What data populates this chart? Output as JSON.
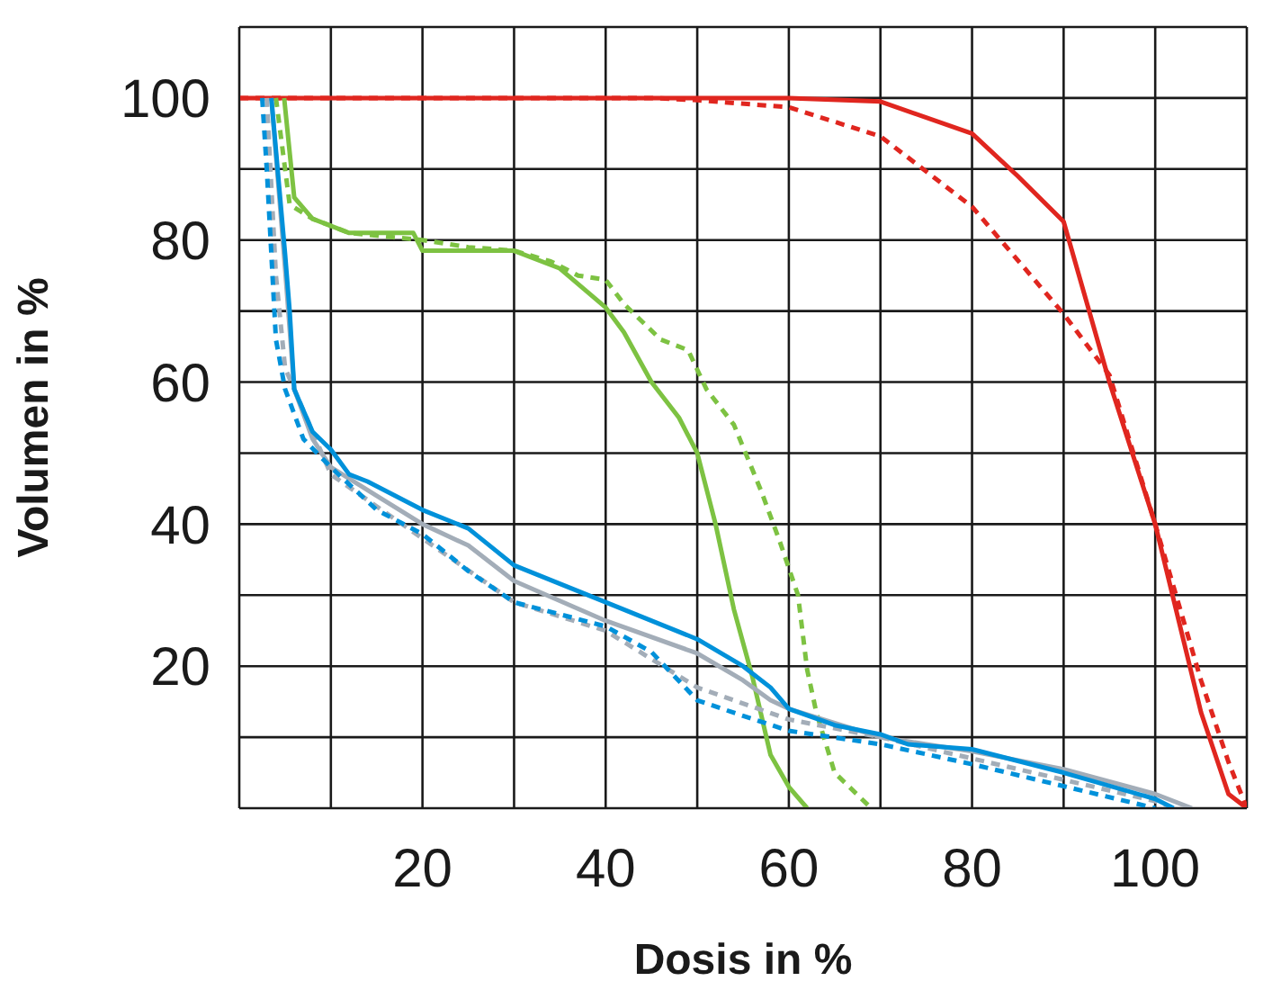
{
  "chart_data": {
    "type": "line",
    "xlabel": "Dosis in %",
    "ylabel": "Volumen in %",
    "xlim": [
      0,
      110
    ],
    "ylim": [
      0,
      110
    ],
    "xticks": [
      {
        "value": 0,
        "label": null
      },
      {
        "value": 10,
        "label": null
      },
      20,
      {
        "value": 30,
        "label": null
      },
      40,
      {
        "value": 50,
        "label": null
      },
      60,
      {
        "value": 70,
        "label": null
      },
      80,
      {
        "value": 90,
        "label": null
      },
      100,
      {
        "value": 110,
        "label": null
      }
    ],
    "yticks": [
      {
        "value": 0,
        "label": null
      },
      {
        "value": 10,
        "label": null
      },
      20,
      {
        "value": 30,
        "label": null
      },
      40,
      {
        "value": 50,
        "label": null
      },
      60,
      {
        "value": 70,
        "label": null
      },
      80,
      {
        "value": 90,
        "label": null
      },
      100,
      {
        "value": 110,
        "label": null
      }
    ],
    "grid": true,
    "legend": false,
    "marker": "none",
    "series": [
      {
        "color": "#e0261f",
        "line_style": "solid",
        "x": [
          0,
          60,
          70,
          80,
          85,
          90,
          95,
          100,
          105,
          108,
          110
        ],
        "values": [
          100,
          100,
          99.5,
          95,
          89,
          82.6,
          60,
          40,
          13.5,
          2,
          0
        ]
      },
      {
        "color": "#e0261f",
        "line_style": "dashed",
        "x": [
          0,
          45,
          50,
          60,
          70,
          80,
          90,
          95,
          100,
          105,
          108,
          110
        ],
        "values": [
          100,
          100,
          99.7,
          98.7,
          94.6,
          84.7,
          69.6,
          61,
          40,
          18,
          6.5,
          0
        ]
      },
      {
        "color": "#7dc242",
        "line_style": "solid",
        "x": [
          4.9,
          6,
          8,
          12,
          19,
          20,
          30,
          35,
          40,
          42,
          45,
          48,
          50,
          52,
          54,
          56,
          58,
          60,
          62
        ],
        "values": [
          100,
          86,
          83,
          81,
          81,
          78.5,
          78.5,
          76,
          70.5,
          67,
          60,
          55,
          50,
          40,
          28,
          18.6,
          7.5,
          3,
          0
        ]
      },
      {
        "color": "#7dc242",
        "line_style": "dashed",
        "x": [
          4,
          5.5,
          8,
          12,
          20,
          25,
          30,
          34,
          37,
          40,
          42,
          46,
          49,
          51,
          54,
          57,
          59,
          61,
          62,
          63,
          65,
          69
        ],
        "values": [
          100,
          85,
          83,
          81,
          80,
          79,
          78.5,
          77,
          75,
          74.4,
          71,
          66,
          64.5,
          59,
          54,
          44.6,
          37.6,
          30,
          19.5,
          13.5,
          5,
          0
        ]
      },
      {
        "color": "#a3adb8",
        "line_style": "solid",
        "x": [
          3.5,
          5,
          6,
          8,
          10,
          15,
          20,
          25,
          30,
          40,
          50,
          55,
          58,
          60,
          70,
          80,
          90,
          100,
          104
        ],
        "values": [
          100,
          76,
          59,
          52,
          48,
          44,
          40,
          37,
          32,
          26.4,
          21.8,
          18,
          15.2,
          14,
          10,
          8,
          5.5,
          2,
          0
        ]
      },
      {
        "color": "#a3adb8",
        "line_style": "dashed",
        "x": [
          3,
          4,
          5,
          10,
          20,
          30,
          40,
          50,
          60,
          70,
          80,
          90,
          100,
          102
        ],
        "values": [
          100,
          75,
          62,
          47,
          38,
          29,
          25,
          17,
          12.5,
          10,
          7,
          4,
          1,
          0
        ]
      },
      {
        "color": "#0091da",
        "line_style": "solid",
        "x": [
          3.5,
          5,
          5.5,
          6,
          8,
          10,
          12,
          14,
          17,
          20,
          25,
          30,
          40,
          50,
          55,
          58,
          60,
          65,
          70,
          73,
          80,
          90,
          100,
          102
        ],
        "values": [
          100,
          78,
          70,
          59,
          53,
          50.5,
          47,
          46,
          44,
          42,
          39.4,
          34.2,
          29,
          23.8,
          20,
          17,
          14,
          11.7,
          10.4,
          9,
          8.3,
          5,
          1.3,
          0
        ]
      },
      {
        "color": "#0091da",
        "line_style": "dashed",
        "x": [
          2.5,
          3,
          4,
          5,
          7,
          10,
          15,
          20,
          25,
          30,
          40,
          45,
          50,
          55,
          60,
          70,
          80,
          90,
          100
        ],
        "values": [
          100,
          90,
          66,
          59,
          52,
          48,
          42,
          38.6,
          33.4,
          29,
          25.6,
          22,
          15.2,
          13,
          10.9,
          9,
          6.2,
          3.1,
          0
        ]
      }
    ]
  }
}
